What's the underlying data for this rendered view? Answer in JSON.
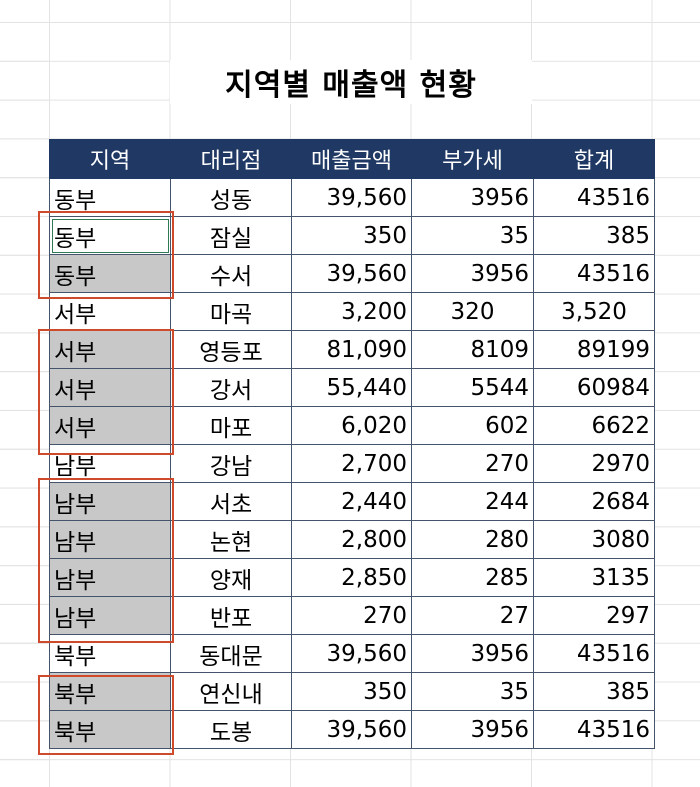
{
  "title": "지역별 매출액 현황",
  "headers": [
    "지역",
    "대리점",
    "매출금액",
    "부가세",
    "합계"
  ],
  "rows": [
    {
      "region": "동부",
      "agency": "성동",
      "sales": "39,560",
      "vat": "3956",
      "total": "43516",
      "shaded": false
    },
    {
      "region": "동부",
      "agency": "잠실",
      "sales": "350",
      "vat": "35",
      "total": "385",
      "shaded": false,
      "selected": true
    },
    {
      "region": "동부",
      "agency": "수서",
      "sales": "39,560",
      "vat": "3956",
      "total": "43516",
      "shaded": true
    },
    {
      "region": "서부",
      "agency": "마곡",
      "sales": "3,200",
      "vat": "320",
      "total": "3,520",
      "shaded": false,
      "center_num": true
    },
    {
      "region": "서부",
      "agency": "영등포",
      "sales": "81,090",
      "vat": "8109",
      "total": "89199",
      "shaded": true
    },
    {
      "region": "서부",
      "agency": "강서",
      "sales": "55,440",
      "vat": "5544",
      "total": "60984",
      "shaded": true
    },
    {
      "region": "서부",
      "agency": "마포",
      "sales": "6,020",
      "vat": "602",
      "total": "6622",
      "shaded": true
    },
    {
      "region": "남부",
      "agency": "강남",
      "sales": "2,700",
      "vat": "270",
      "total": "2970",
      "shaded": false
    },
    {
      "region": "남부",
      "agency": "서초",
      "sales": "2,440",
      "vat": "244",
      "total": "2684",
      "shaded": true
    },
    {
      "region": "남부",
      "agency": "논현",
      "sales": "2,800",
      "vat": "280",
      "total": "3080",
      "shaded": true
    },
    {
      "region": "남부",
      "agency": "양재",
      "sales": "2,850",
      "vat": "285",
      "total": "3135",
      "shaded": true
    },
    {
      "region": "남부",
      "agency": "반포",
      "sales": "270",
      "vat": "27",
      "total": "297",
      "shaded": true
    },
    {
      "region": "북부",
      "agency": "동대문",
      "sales": "39,560",
      "vat": "3956",
      "total": "43516",
      "shaded": false
    },
    {
      "region": "북부",
      "agency": "연신내",
      "sales": "350",
      "vat": "35",
      "total": "385",
      "shaded": true
    },
    {
      "region": "북부",
      "agency": "도봉",
      "sales": "39,560",
      "vat": "3956",
      "total": "43516",
      "shaded": true
    }
  ],
  "highlight_color": "#cf4a2a",
  "header_color": "#1f3864",
  "shade_color": "#c8c8c8"
}
